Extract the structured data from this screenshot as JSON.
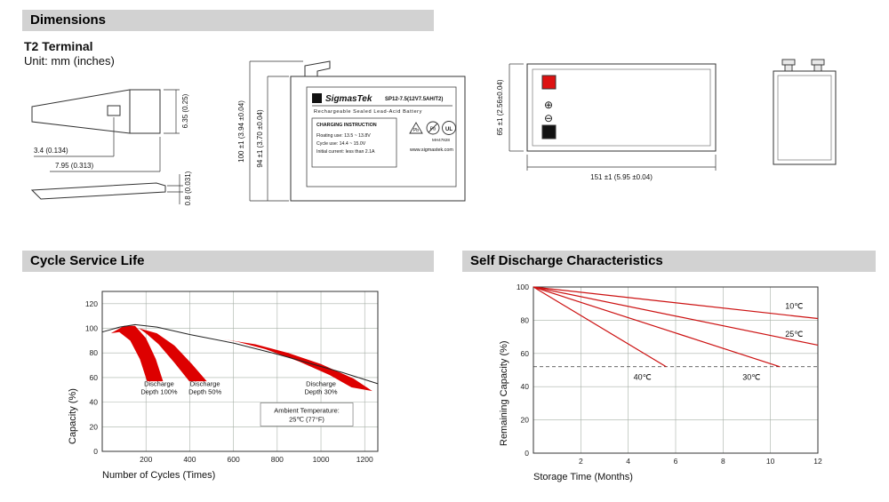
{
  "colors": {
    "header_bg": "#d2d2d2",
    "band_red": "#dd0000",
    "line_red": "#cc1111",
    "grid": "#a8b0a8",
    "drawing_stroke": "#333333",
    "positive_terminal": "#dd1111",
    "negative_terminal": "#111111"
  },
  "dimensions_section": {
    "header": "Dimensions",
    "terminal_type": "T2 Terminal",
    "unit": "Unit: mm (inches)",
    "terminal_drawing": {
      "hole_width": "3.4 (0.134)",
      "hole_offset": "7.95 (0.313)",
      "tab_width": "6.35 (0.25)",
      "thickness": "0.8 (0.031)"
    },
    "front_view": {
      "total_height": "100 ±1 (3.94 ±0.04)",
      "case_height": "94 ±1 (3.70 ±0.04)",
      "label": {
        "brand": "SigmasTek",
        "model": "SP12-7.5(12V7.5AH/T2)",
        "type_line": "Rechargeable Sealed Lead-Acid Battery",
        "charging_title": "CHARGING INSTRUCTION",
        "charging_line1": "Floating use: 13.5 ~ 13.8V",
        "charging_line2": "Cycle use: 14.4 ~ 15.0V",
        "charging_line3": "Initial current: less than 2.1A",
        "website": "www.sigmastek.com",
        "ul_code": "MH47828",
        "pb": "Pb",
        "ul": "UL"
      }
    },
    "top_view": {
      "width_dim": "65 ±1 (2.56±0.04)",
      "length_dim": "151 ±1 (5.95 ±0.04)",
      "plus_symbol": "⊕",
      "minus_symbol": "⊖"
    }
  },
  "cycle_section": {
    "header": "Cycle Service Life"
  },
  "discharge_section": {
    "header": "Self Discharge Characteristics"
  },
  "chart_data": [
    {
      "type": "area",
      "title": "Cycle Service Life",
      "xlabel": "Number of Cycles (Times)",
      "ylabel": "Capacity (%)",
      "xlim": [
        0,
        1260
      ],
      "ylim": [
        0,
        130
      ],
      "xticks": [
        200,
        400,
        600,
        800,
        1000,
        1200
      ],
      "yticks": [
        0,
        20,
        40,
        60,
        80,
        100,
        120
      ],
      "grid": true,
      "legend_position": "none",
      "envelope": [
        [
          0,
          97
        ],
        [
          80,
          101
        ],
        [
          150,
          103
        ],
        [
          250,
          101
        ],
        [
          400,
          95
        ],
        [
          600,
          88
        ],
        [
          800,
          79
        ],
        [
          1000,
          69
        ],
        [
          1100,
          64
        ],
        [
          1260,
          55
        ]
      ],
      "bands": [
        {
          "name": "Discharge Depth 100%",
          "polygon": [
            [
              40,
              96
            ],
            [
              100,
              102
            ],
            [
              150,
              102
            ],
            [
              200,
              92
            ],
            [
              245,
              75
            ],
            [
              278,
              57
            ],
            [
              205,
              57
            ],
            [
              172,
              75
            ],
            [
              128,
              90
            ],
            [
              78,
              97
            ],
            [
              40,
              96
            ]
          ],
          "label_x": 260,
          "label_y": 53
        },
        {
          "name": "Discharge Depth 50%",
          "polygon": [
            [
              168,
              100
            ],
            [
              250,
              96
            ],
            [
              330,
              86
            ],
            [
              410,
              71
            ],
            [
              478,
              57
            ],
            [
              398,
              57
            ],
            [
              330,
              72
            ],
            [
              258,
              87
            ],
            [
              200,
              96
            ],
            [
              168,
              100
            ]
          ],
          "label_x": 470,
          "label_y": 53
        },
        {
          "name": "Discharge Depth 30%",
          "polygon": [
            [
              558,
              91
            ],
            [
              700,
              87
            ],
            [
              850,
              80
            ],
            [
              1000,
              71
            ],
            [
              1150,
              59
            ],
            [
              1235,
              49
            ],
            [
              1140,
              52
            ],
            [
              1040,
              62
            ],
            [
              900,
              73
            ],
            [
              748,
              83
            ],
            [
              620,
              89
            ],
            [
              558,
              91
            ]
          ],
          "label_x": 1000,
          "label_y": 53
        }
      ],
      "annotation": {
        "line1": "Ambient Temperature:",
        "line2": "25℃ (77°F)",
        "x": 935,
        "y": 30
      }
    },
    {
      "type": "line",
      "title": "Self Discharge Characteristics",
      "xlabel": "Storage Time (Months)",
      "ylabel": "Remaining Capacity (%)",
      "xlim": [
        0,
        12
      ],
      "ylim": [
        0,
        100
      ],
      "xticks": [
        2,
        4,
        6,
        8,
        10,
        12
      ],
      "yticks": [
        0,
        20,
        40,
        60,
        80,
        100
      ],
      "grid": true,
      "legend_position": "inline-labels",
      "reference_line_y": 52,
      "series": [
        {
          "name": "10℃",
          "points": [
            [
              0,
              100
            ],
            [
              12,
              81
            ]
          ],
          "label_x": 11.0,
          "label_y": 87
        },
        {
          "name": "25℃",
          "points": [
            [
              0,
              100
            ],
            [
              12,
              65
            ]
          ],
          "label_x": 11.0,
          "label_y": 70
        },
        {
          "name": "30℃",
          "points": [
            [
              0,
              100
            ],
            [
              10.4,
              52
            ]
          ],
          "label_x": 9.2,
          "label_y": 44
        },
        {
          "name": "40℃",
          "points": [
            [
              0,
              100
            ],
            [
              5.6,
              52
            ]
          ],
          "label_x": 4.6,
          "label_y": 44
        }
      ]
    }
  ]
}
